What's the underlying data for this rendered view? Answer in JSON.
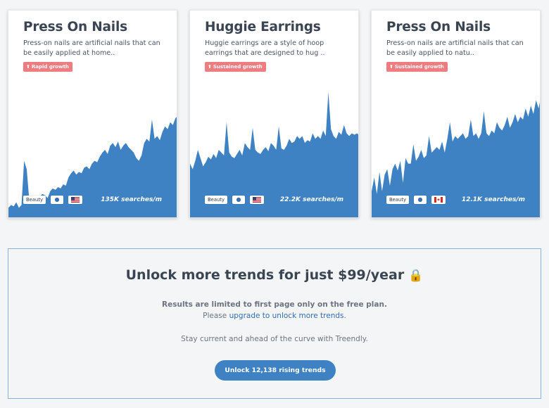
{
  "cards": [
    {
      "title": "Press On Nails",
      "description": "Press-on nails are artificial nails that can be easily applied at home..",
      "badge": "Rapid growth",
      "category": "Beauty",
      "country_flag": "us-flag",
      "searches": "135K searches/m",
      "trend": [
        0.08,
        0.1,
        0.09,
        0.12,
        0.08,
        0.1,
        0.42,
        0.36,
        0.13,
        0.14,
        0.15,
        0.13,
        0.16,
        0.18,
        0.17,
        0.15,
        0.2,
        0.22,
        0.21,
        0.23,
        0.22,
        0.25,
        0.24,
        0.3,
        0.33,
        0.35,
        0.32,
        0.34,
        0.33,
        0.37,
        0.38,
        0.36,
        0.4,
        0.42,
        0.41,
        0.45,
        0.48,
        0.5,
        0.47,
        0.53,
        0.55,
        0.52,
        0.56,
        0.5,
        0.53,
        0.55,
        0.52,
        0.5,
        0.48,
        0.44,
        0.42,
        0.46,
        0.55,
        0.58,
        0.56,
        0.72,
        0.58,
        0.6,
        0.57,
        0.63,
        0.67,
        0.65,
        0.7,
        0.68,
        0.73,
        0.75
      ]
    },
    {
      "title": "Huggie Earrings",
      "description": "Huggie earrings are a style of hoop earrings that are designed to hug ..",
      "badge": "Sustained growth",
      "category": "Beauty",
      "country_flag": "us-flag",
      "searches": "22.2K searches/m",
      "trend": [
        0.4,
        0.36,
        0.42,
        0.5,
        0.44,
        0.38,
        0.41,
        0.45,
        0.43,
        0.47,
        0.44,
        0.5,
        0.48,
        0.46,
        0.7,
        0.48,
        0.45,
        0.44,
        0.47,
        0.5,
        0.46,
        0.55,
        0.52,
        0.5,
        0.66,
        0.5,
        0.48,
        0.47,
        0.5,
        0.52,
        0.49,
        0.55,
        0.53,
        0.5,
        0.67,
        0.51,
        0.5,
        0.53,
        0.58,
        0.55,
        0.56,
        0.6,
        0.58,
        0.6,
        0.55,
        0.57,
        0.56,
        0.62,
        0.58,
        0.6,
        0.58,
        0.64,
        0.6,
        0.92,
        0.65,
        0.6,
        0.58,
        0.63,
        0.61,
        0.68,
        0.62,
        0.6,
        0.62,
        0.61,
        0.62,
        0.6
      ]
    },
    {
      "title": "Press On Nails",
      "description": "Press-on nails are artificial nails that can be easily applied to natu..",
      "badge": "Sustained growth",
      "category": "Beauty",
      "country_flag": "ca-flag",
      "searches": "12.1K searches/m",
      "trend": [
        0.2,
        0.3,
        0.18,
        0.34,
        0.2,
        0.32,
        0.36,
        0.24,
        0.36,
        0.4,
        0.35,
        0.42,
        0.26,
        0.44,
        0.4,
        0.4,
        0.54,
        0.42,
        0.45,
        0.5,
        0.44,
        0.46,
        0.6,
        0.48,
        0.5,
        0.52,
        0.5,
        0.56,
        0.48,
        0.58,
        0.7,
        0.56,
        0.6,
        0.58,
        0.6,
        0.62,
        0.58,
        0.6,
        0.72,
        0.6,
        0.62,
        0.58,
        0.62,
        0.78,
        0.62,
        0.6,
        0.64,
        0.62,
        0.7,
        0.66,
        0.64,
        0.68,
        0.74,
        0.66,
        0.7,
        0.76,
        0.7,
        0.74,
        0.72,
        0.8,
        0.74,
        0.82,
        0.76,
        0.86,
        0.8,
        0.9
      ]
    }
  ],
  "unlock": {
    "title": "Unlock more trends for just $99/year",
    "line1": "Results are limited to first page only on the free plan.",
    "line2_prefix": "Please ",
    "line2_link": "upgrade to unlock more trends",
    "line2_suffix": ".",
    "line3": "Stay current and ahead of the curve with Treendly.",
    "cta": "Unlock 12,138 rising trends"
  },
  "colors": {
    "chart_fill": "#3e82c4",
    "badge_bg": "#f07c7f",
    "cta_bg": "#3e82c4",
    "link": "#2f6db6"
  }
}
